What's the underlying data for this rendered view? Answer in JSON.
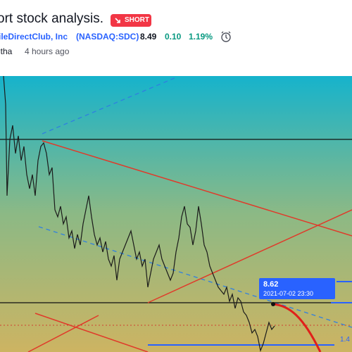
{
  "header": {
    "title": "ort stock analysis.",
    "badge": "SHORT"
  },
  "symbol": {
    "name": "ileDirectClub, Inc",
    "exchange": "(NASDAQ:SDC)",
    "price": "8.49",
    "change": "0.10",
    "change_percent": "1.19%"
  },
  "author": {
    "name": "itha",
    "time": "4 hours ago"
  },
  "chart": {
    "label_price": "8.62",
    "label_time": "2021-07-02 23:30",
    "edge_label": "1.4"
  }
}
